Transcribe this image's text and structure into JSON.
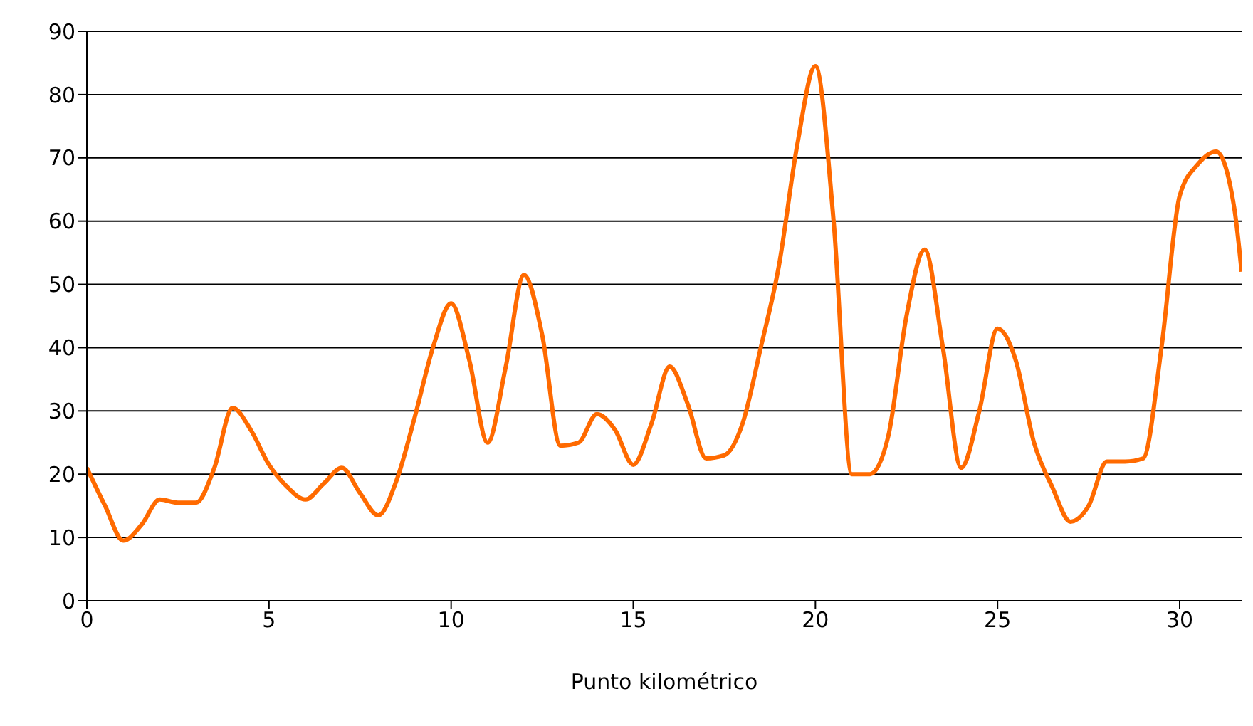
{
  "chart_data": {
    "type": "line",
    "xlabel": "Punto kilométrico",
    "x": [
      0,
      0.5,
      1,
      1.5,
      2,
      2.5,
      3,
      3.5,
      4,
      4.5,
      5,
      5.5,
      6,
      6.5,
      7,
      7.5,
      8,
      8.5,
      9,
      9.5,
      10,
      10.5,
      11,
      11.5,
      12,
      12.5,
      13,
      13.5,
      14,
      14.5,
      15,
      15.5,
      16,
      16.5,
      17,
      17.5,
      18,
      18.5,
      19,
      19.5,
      20,
      20.5,
      21,
      21.5,
      22,
      22.5,
      23,
      23.5,
      24,
      24.5,
      25,
      25.5,
      26,
      26.5,
      27,
      27.5,
      28,
      28.5,
      29,
      29.5,
      30,
      30.5,
      31,
      31.5,
      31.7
    ],
    "series": [
      {
        "color": "#ff6a00",
        "values": [
          21,
          15,
          9.5,
          12,
          16,
          15.5,
          15.5,
          21,
          30.5,
          27,
          21.5,
          18,
          16,
          18.5,
          21,
          17,
          13.5,
          19,
          29,
          40,
          47,
          38,
          25,
          37,
          51.5,
          42,
          24.5,
          25,
          29.5,
          27,
          21.5,
          28,
          37,
          31,
          22.5,
          23,
          28,
          40,
          53,
          72,
          84.5,
          60,
          20,
          20,
          26,
          45,
          55.5,
          40,
          21,
          30,
          43,
          38,
          25,
          18,
          12.5,
          15,
          22,
          22,
          22.5,
          40,
          64,
          69,
          71,
          62,
          52
        ]
      }
    ],
    "xlim": [
      0,
      31.7
    ],
    "xticks": [
      0,
      5,
      10,
      15,
      20,
      25,
      30
    ],
    "ylim": [
      0,
      90
    ],
    "yticks": [
      0,
      10,
      20,
      30,
      40,
      50,
      60,
      70,
      80,
      90
    ],
    "grid": "y",
    "legend": false,
    "marker": "none",
    "line_style": "solid"
  }
}
